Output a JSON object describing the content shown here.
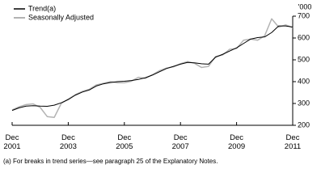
{
  "chart_data": {
    "type": "line",
    "y_unit": "'000",
    "footnote": "(a) For breaks in trend series—see paragraph 25 of the Explanatory Notes.",
    "x": [
      "2001-12",
      "2002-03",
      "2002-06",
      "2002-09",
      "2002-12",
      "2003-03",
      "2003-06",
      "2003-09",
      "2003-12",
      "2004-03",
      "2004-06",
      "2004-09",
      "2004-12",
      "2005-03",
      "2005-06",
      "2005-09",
      "2005-12",
      "2006-03",
      "2006-06",
      "2006-09",
      "2006-12",
      "2007-03",
      "2007-06",
      "2007-09",
      "2007-12",
      "2008-03",
      "2008-06",
      "2008-09",
      "2008-12",
      "2009-03",
      "2009-06",
      "2009-09",
      "2009-12",
      "2010-03",
      "2010-06",
      "2010-09",
      "2010-12",
      "2011-03",
      "2011-06",
      "2011-09",
      "2011-12"
    ],
    "series": [
      {
        "name": "Trend(a)",
        "color": "#000000",
        "width": 1,
        "values": [
          268,
          280,
          288,
          290,
          288,
          287,
          292,
          303,
          318,
          338,
          352,
          362,
          380,
          390,
          396,
          400,
          402,
          405,
          410,
          418,
          430,
          445,
          460,
          470,
          480,
          488,
          486,
          482,
          480,
          512,
          525,
          540,
          555,
          575,
          595,
          602,
          605,
          625,
          655,
          655,
          650
        ]
      },
      {
        "name": "Seasonally Adjusted",
        "color": "#b3b3b3",
        "width": 1.5,
        "values": [
          270,
          285,
          295,
          298,
          282,
          240,
          236,
          300,
          320,
          340,
          355,
          365,
          385,
          392,
          400,
          395,
          395,
          402,
          420,
          415,
          432,
          450,
          462,
          468,
          482,
          492,
          484,
          465,
          470,
          515,
          522,
          548,
          552,
          590,
          595,
          590,
          610,
          688,
          650,
          660,
          648
        ]
      }
    ],
    "xlim": [
      "2001-12",
      "2011-12"
    ],
    "xticks": [
      {
        "value": "2001-12",
        "label": "Dec 2001"
      },
      {
        "value": "2003-12",
        "label": "Dec 2003"
      },
      {
        "value": "2005-12",
        "label": "Dec 2005"
      },
      {
        "value": "2007-12",
        "label": "Dec 2007"
      },
      {
        "value": "2009-12",
        "label": "Dec 2009"
      },
      {
        "value": "2011-12",
        "label": "Dec 2011"
      }
    ],
    "ylim": [
      200,
      700
    ],
    "yticks": [
      200,
      300,
      400,
      500,
      600,
      700
    ],
    "legend": "top-left"
  }
}
